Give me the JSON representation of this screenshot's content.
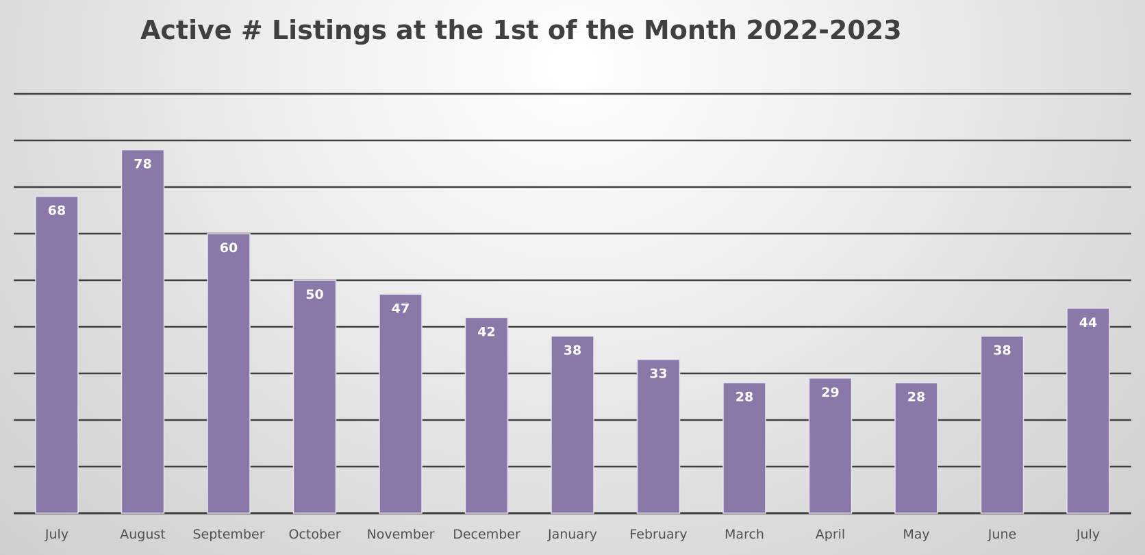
{
  "chart_data": {
    "type": "bar",
    "title": "Active # Listings at the 1st of the Month 2022-2023",
    "xlabel": "",
    "ylabel": "",
    "categories": [
      "July",
      "August",
      "September",
      "October",
      "November",
      "December",
      "January",
      "February",
      "March",
      "April",
      "May",
      "June",
      "July"
    ],
    "values": [
      68,
      78,
      60,
      50,
      47,
      42,
      38,
      33,
      28,
      29,
      28,
      38,
      44
    ],
    "ylim": [
      0,
      90
    ],
    "gridline_step": 10,
    "grid": true,
    "legend": "none",
    "data_labels": "inside-end",
    "bar_color": "#8a78a8",
    "bar_border_color": "#e8e2ef"
  }
}
